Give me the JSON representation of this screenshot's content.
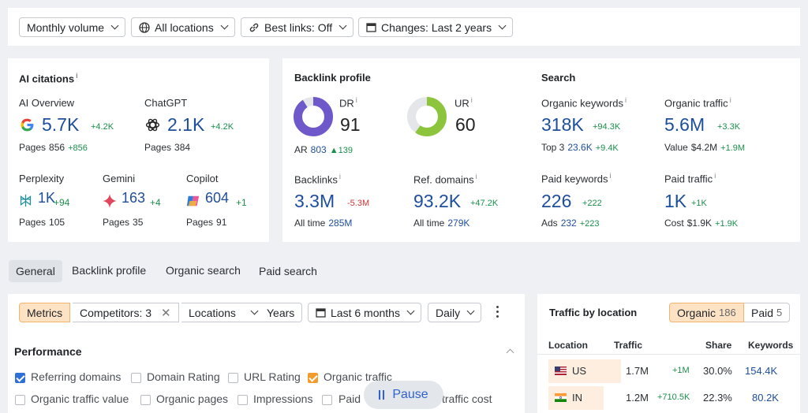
{
  "filters": {
    "monthly_volume": "Monthly volume",
    "all_locations": "All locations",
    "best_links": "Best links: Off",
    "changes": "Changes: Last 2 years"
  },
  "ai_citations": {
    "title": "AI citations",
    "ai_overview": {
      "label": "AI Overview",
      "value": "5.7K",
      "delta": "+4.2K",
      "pages_label": "Pages",
      "pages": "856",
      "pages_delta": "+856"
    },
    "chatgpt": {
      "label": "ChatGPT",
      "value": "2.1K",
      "delta": "+4.2K",
      "pages_label": "Pages",
      "pages": "384"
    },
    "perplexity": {
      "label": "Perplexity",
      "value": "1K",
      "delta": "+94",
      "pages_label": "Pages",
      "pages": "105"
    },
    "gemini": {
      "label": "Gemini",
      "value": "163",
      "delta": "+4",
      "pages_label": "Pages",
      "pages": "35"
    },
    "copilot": {
      "label": "Copilot",
      "value": "604",
      "delta": "+1",
      "pages_label": "Pages",
      "pages": "91"
    }
  },
  "backlink_profile": {
    "title": "Backlink profile",
    "dr": {
      "label": "DR",
      "value": "91",
      "fraction": 0.91
    },
    "ur": {
      "label": "UR",
      "value": "60",
      "fraction": 0.6
    },
    "ar": {
      "label": "AR",
      "value": "803",
      "delta": "139"
    },
    "backlinks": {
      "label": "Backlinks",
      "value": "3.3M",
      "delta": "-5.3M",
      "sub_label": "All time",
      "sub_value": "285M"
    },
    "ref_domains": {
      "label": "Ref. domains",
      "value": "93.2K",
      "delta": "+47.2K",
      "sub_label": "All time",
      "sub_value": "279K"
    }
  },
  "search": {
    "title": "Search",
    "organic_keywords": {
      "label": "Organic keywords",
      "value": "318K",
      "delta": "+94.3K",
      "sub_label": "Top 3",
      "sub_value": "23.6K",
      "sub_delta": "+9.4K"
    },
    "organic_traffic": {
      "label": "Organic traffic",
      "value": "5.6M",
      "delta": "+3.3K",
      "sub_label": "Value",
      "sub_value": "$4.2M",
      "sub_delta": "+1.9M"
    },
    "paid_keywords": {
      "label": "Paid keywords",
      "value": "226",
      "delta": "+222",
      "sub_label": "Ads",
      "sub_value": "232",
      "sub_delta": "+223"
    },
    "paid_traffic": {
      "label": "Paid traffic",
      "value": "1K",
      "delta": "+1K",
      "sub_label": "Cost",
      "sub_value": "$1.9K",
      "sub_delta": "+1.9K"
    }
  },
  "tabs": [
    "General",
    "Backlink profile",
    "Organic search",
    "Paid search"
  ],
  "toolbar": {
    "metrics": "Metrics",
    "competitors": "Competitors: 3",
    "locations": "Locations",
    "years": "Years",
    "last_6_months": "Last 6 months",
    "daily": "Daily"
  },
  "performance": {
    "title": "Performance",
    "checks": [
      {
        "label": "Referring domains",
        "checked": true
      },
      {
        "label": "Domain Rating",
        "checked": false
      },
      {
        "label": "URL Rating",
        "checked": false
      },
      {
        "label": "Organic traffic",
        "checked": true
      },
      {
        "label": "Organic traffic value",
        "checked": false
      },
      {
        "label": "Organic pages",
        "checked": false
      },
      {
        "label": "Impressions",
        "checked": false
      },
      {
        "label": "Paid",
        "checked": false
      },
      {
        "label": "traffic cost",
        "checked": false
      }
    ]
  },
  "pause": {
    "label": "Pause"
  },
  "traffic_by_location": {
    "title": "Traffic by location",
    "toggle_organic": "Organic",
    "toggle_organic_count": "186",
    "toggle_paid": "Paid",
    "toggle_paid_count": "5",
    "columns": [
      "Location",
      "Traffic",
      "Share",
      "Keywords"
    ],
    "rows": [
      {
        "location": "US",
        "traffic": "1.7M",
        "delta": "+1M",
        "share": "30.0%",
        "keywords": "154.4K"
      },
      {
        "location": "IN",
        "traffic": "1.2M",
        "delta": "+710.5K",
        "share": "22.3%",
        "keywords": "80.2K"
      }
    ]
  },
  "colors": {
    "accent_blue": "#1d4e9e",
    "positive": "#1a8f4a",
    "negative": "#d13535",
    "dr_ring": "#6f58c9",
    "ur_ring": "#8cc43c",
    "orange": "#f39c2d"
  }
}
